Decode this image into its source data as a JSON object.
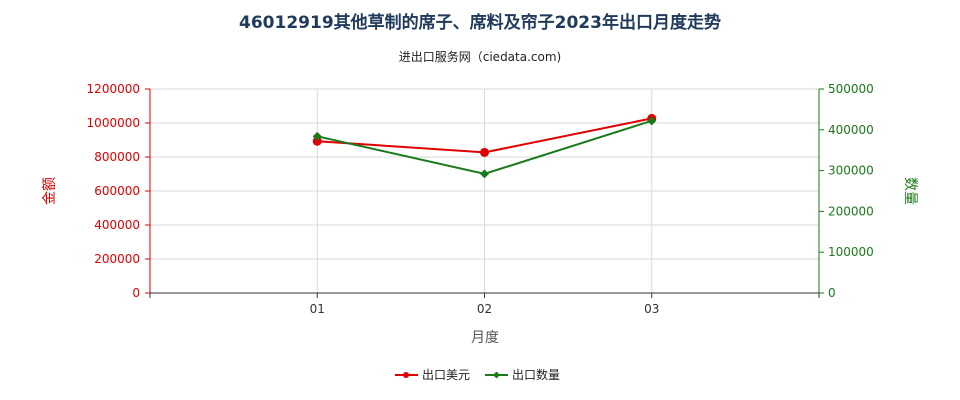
{
  "title": "46012919其他草制的席子、席料及帘子2023年出口月度走势",
  "subtitle": "进出口服务网（ciedata.com)",
  "chart_data": {
    "type": "line",
    "title": "46012919其他草制的席子、席料及帘子2023年出口月度走势",
    "subtitle": "进出口服务网（ciedata.com)",
    "categories": [
      "01",
      "02",
      "03"
    ],
    "xlabel": "月度",
    "y_left": {
      "label": "金额",
      "min": 0,
      "max": 1200000,
      "step": 200000,
      "ticks": [
        "0",
        "200000",
        "400000",
        "600000",
        "800000",
        "1000000",
        "1200000"
      ]
    },
    "y_right": {
      "label": "数量",
      "min": 0,
      "max": 500000,
      "step": 100000,
      "ticks": [
        "0",
        "100000",
        "200000",
        "300000",
        "400000",
        "500000"
      ]
    },
    "series": [
      {
        "name": "出口美元",
        "axis": "left",
        "color": "#e00000",
        "marker": "circle",
        "values": [
          893000,
          827000,
          1027000
        ]
      },
      {
        "name": "出口数量",
        "axis": "right",
        "color": "#1a7a1a",
        "marker": "diamond",
        "values": [
          384000,
          292000,
          422000
        ]
      }
    ],
    "grid": true,
    "legend_position": "bottom-center"
  }
}
